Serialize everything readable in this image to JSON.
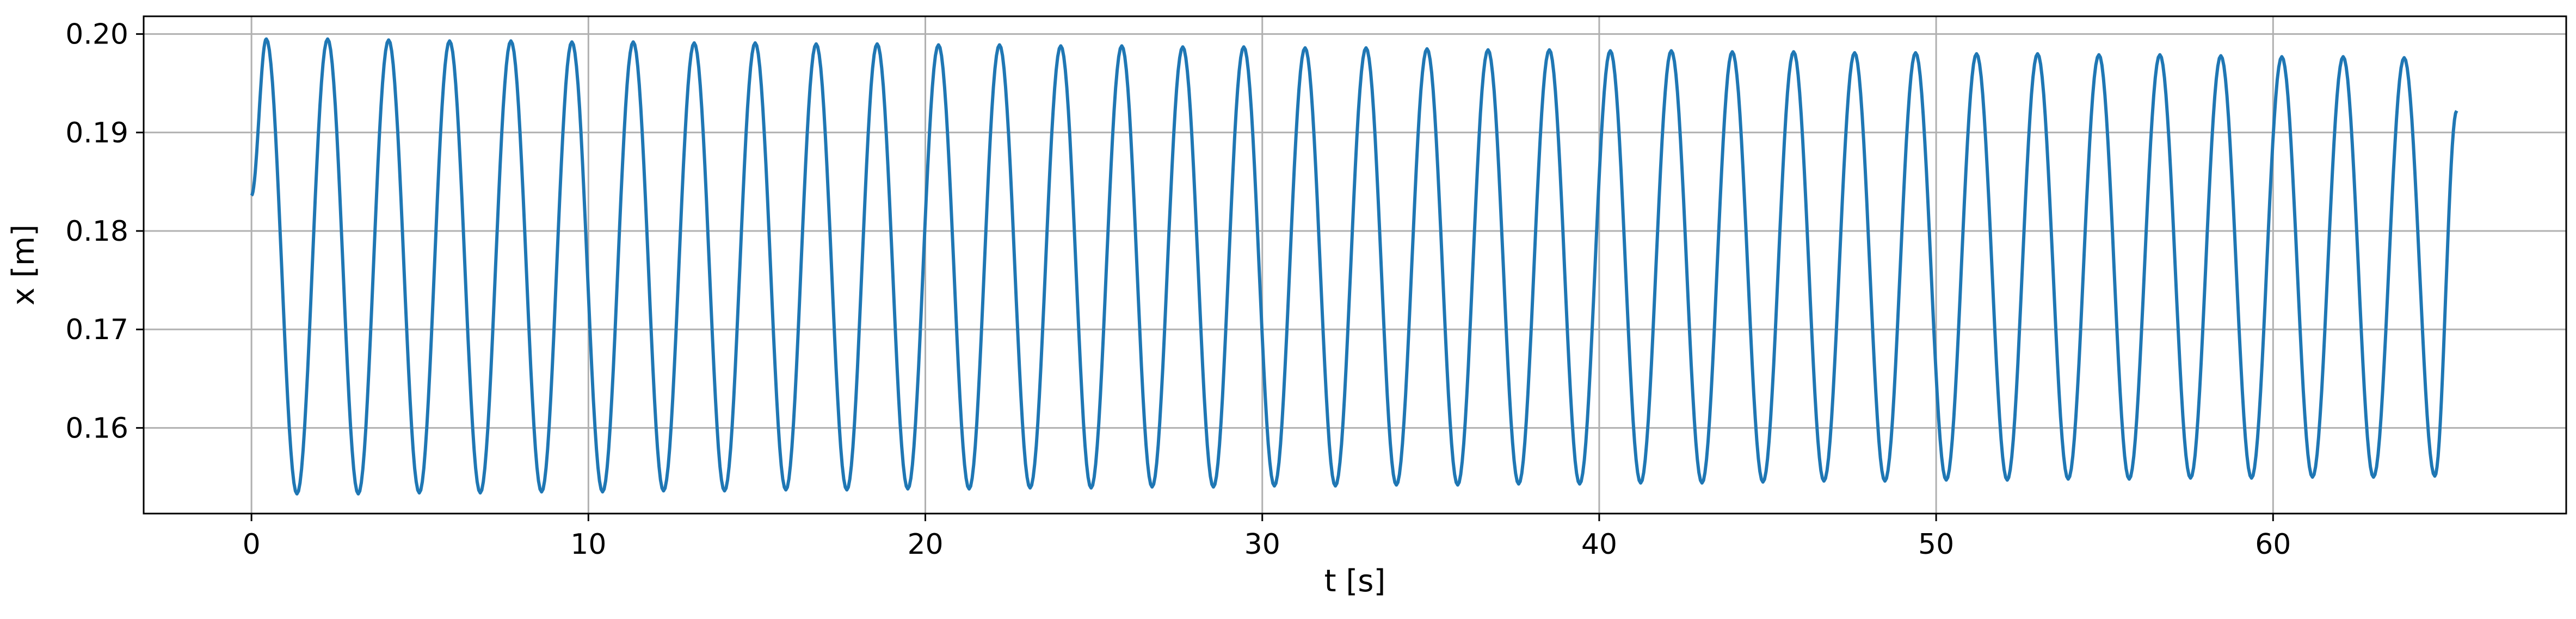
{
  "chart_data": {
    "type": "line",
    "title": "",
    "xlabel": "t [s]",
    "ylabel": "x [m]",
    "xlim": [
      -3.2,
      68.7
    ],
    "ylim": [
      0.1513,
      0.2018
    ],
    "grid": true,
    "x_ticks": [
      0,
      10,
      20,
      30,
      40,
      50,
      60
    ],
    "y_ticks": [
      0.16,
      0.17,
      0.18,
      0.19,
      0.2
    ],
    "x_tick_labels": [
      "0",
      "10",
      "20",
      "30",
      "40",
      "50",
      "60"
    ],
    "y_tick_labels": [
      "0.16",
      "0.17",
      "0.18",
      "0.19",
      "0.20"
    ],
    "series": [
      {
        "color": "#1f77b4",
        "x": [
          0,
          0.44,
          1.35,
          2.26,
          3.17,
          4.07,
          4.98,
          5.88,
          6.79,
          7.7,
          8.61,
          9.51,
          10.42,
          11.33,
          12.23,
          13.14,
          14.04,
          14.95,
          15.86,
          16.76,
          17.67,
          18.57,
          19.48,
          20.39,
          21.3,
          22.2,
          23.11,
          24.02,
          24.92,
          25.83,
          26.73,
          27.64,
          28.55,
          29.45,
          30.36,
          31.27,
          32.17,
          33.08,
          33.98,
          34.89,
          35.8,
          36.7,
          37.61,
          38.52,
          39.42,
          40.33,
          41.23,
          42.14,
          43.05,
          43.95,
          44.86,
          45.77,
          46.67,
          47.58,
          48.48,
          49.39,
          50.3,
          51.2,
          52.11,
          53.01,
          53.92,
          54.83,
          55.73,
          56.64,
          57.55,
          58.45,
          59.36,
          60.26,
          61.17,
          62.08,
          62.98,
          63.89,
          64.8,
          65.45
        ],
        "y": [
          0.1836,
          0.1995,
          0.1533,
          0.1995,
          0.1533,
          0.1994,
          0.1534,
          0.1993,
          0.1534,
          0.1993,
          0.1535,
          0.1992,
          0.1535,
          0.1992,
          0.1536,
          0.1991,
          0.1536,
          0.1991,
          0.1537,
          0.199,
          0.1537,
          0.199,
          0.1538,
          0.1989,
          0.1538,
          0.1989,
          0.1539,
          0.1988,
          0.1539,
          0.1988,
          0.154,
          0.1987,
          0.154,
          0.1987,
          0.1541,
          0.1986,
          0.1541,
          0.1986,
          0.1542,
          0.1985,
          0.1542,
          0.1984,
          0.1543,
          0.1984,
          0.1543,
          0.1983,
          0.1544,
          0.1983,
          0.1544,
          0.1982,
          0.1545,
          0.1982,
          0.1546,
          0.1981,
          0.1546,
          0.1981,
          0.1547,
          0.198,
          0.1547,
          0.198,
          0.1548,
          0.1979,
          0.1548,
          0.1979,
          0.1549,
          0.1978,
          0.1549,
          0.1977,
          0.155,
          0.1977,
          0.155,
          0.1976,
          0.1551,
          0.1922
        ]
      }
    ]
  }
}
